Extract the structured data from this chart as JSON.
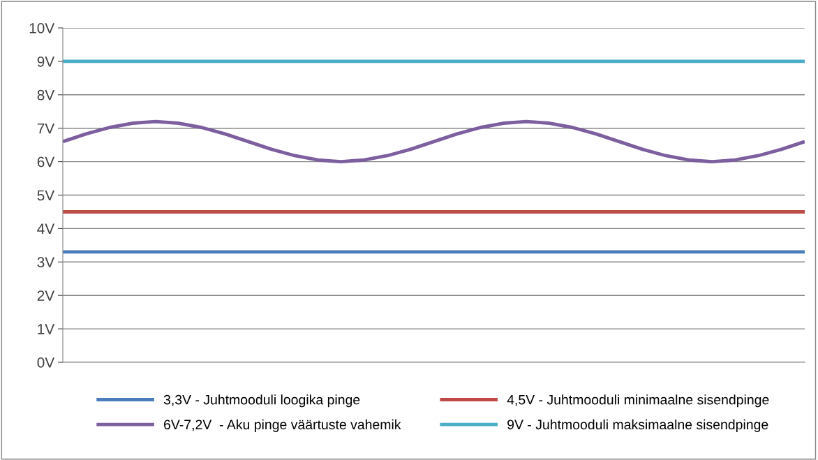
{
  "chart_data": {
    "type": "line",
    "categories": [
      null,
      null,
      null,
      null,
      null,
      null,
      null,
      null,
      null,
      null,
      null,
      null,
      null,
      null,
      null,
      null,
      null,
      null,
      null,
      null,
      null,
      null,
      null,
      null,
      null,
      null,
      null,
      null,
      null,
      null,
      null,
      null,
      null
    ],
    "series": [
      {
        "name": "3,3V - Juhtmooduli loogika pinge",
        "color": "#4a7ebb",
        "values": [
          3.3,
          3.3,
          3.3,
          3.3,
          3.3,
          3.3,
          3.3,
          3.3,
          3.3,
          3.3,
          3.3,
          3.3,
          3.3,
          3.3,
          3.3,
          3.3,
          3.3,
          3.3,
          3.3,
          3.3,
          3.3,
          3.3,
          3.3,
          3.3,
          3.3,
          3.3,
          3.3,
          3.3,
          3.3,
          3.3,
          3.3,
          3.3,
          3.3
        ]
      },
      {
        "name": "4,5V - Juhtmooduli minimaalne sisendpinge",
        "color": "#be4b48",
        "values": [
          4.5,
          4.5,
          4.5,
          4.5,
          4.5,
          4.5,
          4.5,
          4.5,
          4.5,
          4.5,
          4.5,
          4.5,
          4.5,
          4.5,
          4.5,
          4.5,
          4.5,
          4.5,
          4.5,
          4.5,
          4.5,
          4.5,
          4.5,
          4.5,
          4.5,
          4.5,
          4.5,
          4.5,
          4.5,
          4.5,
          4.5,
          4.5,
          4.5
        ]
      },
      {
        "name": "6V-7,2V  - Aku pinge väärtuste vahemik",
        "color": "#7d5fa0",
        "values": [
          6.6,
          6.83,
          7.02,
          7.15,
          7.2,
          7.15,
          7.02,
          6.83,
          6.6,
          6.37,
          6.18,
          6.05,
          6.0,
          6.05,
          6.18,
          6.37,
          6.6,
          6.83,
          7.02,
          7.15,
          7.2,
          7.15,
          7.02,
          6.83,
          6.6,
          6.37,
          6.18,
          6.05,
          6.0,
          6.05,
          6.18,
          6.37,
          6.6
        ]
      },
      {
        "name": "9V - Juhtmooduli maksimaalne sisendpinge",
        "color": "#4bacc6",
        "values": [
          9,
          9,
          9,
          9,
          9,
          9,
          9,
          9,
          9,
          9,
          9,
          9,
          9,
          9,
          9,
          9,
          9,
          9,
          9,
          9,
          9,
          9,
          9,
          9,
          9,
          9,
          9,
          9,
          9,
          9,
          9,
          9,
          9
        ]
      }
    ],
    "ylim": [
      0,
      10
    ],
    "yticks": [
      {
        "value": 0,
        "label": "0V"
      },
      {
        "value": 1,
        "label": "1V"
      },
      {
        "value": 2,
        "label": "2V"
      },
      {
        "value": 3,
        "label": "3V"
      },
      {
        "value": 4,
        "label": "4V"
      },
      {
        "value": 5,
        "label": "5V"
      },
      {
        "value": 6,
        "label": "6V"
      },
      {
        "value": 7,
        "label": "7V"
      },
      {
        "value": 8,
        "label": "8V"
      },
      {
        "value": 9,
        "label": "9V"
      },
      {
        "value": 10,
        "label": "10V"
      }
    ],
    "grid": "y",
    "legend": "bottom",
    "tick_labels": "y",
    "marker": "none",
    "line_style": "solid"
  }
}
